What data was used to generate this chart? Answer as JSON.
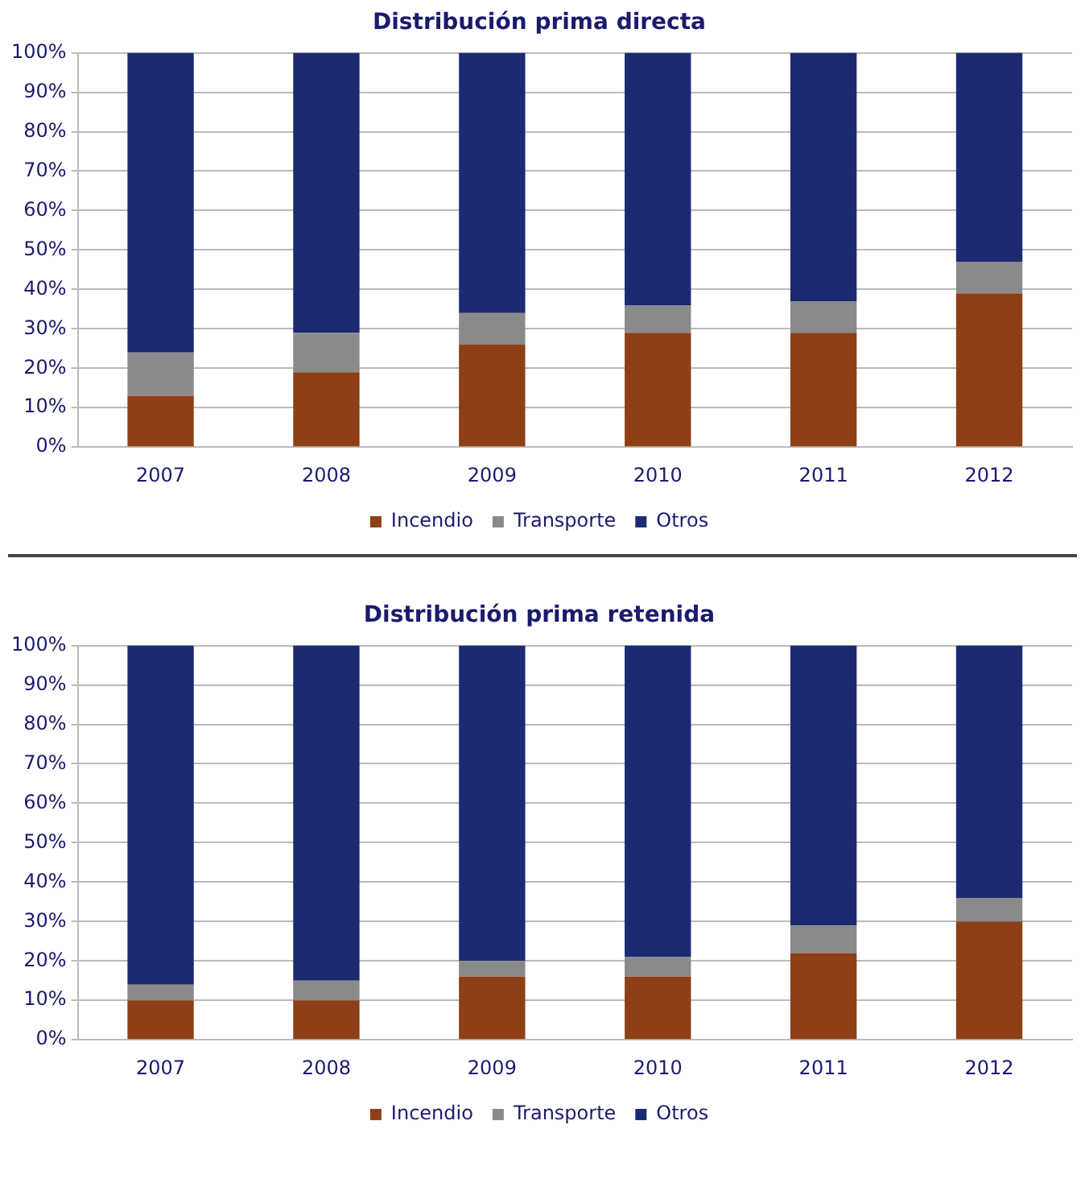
{
  "chart_data": [
    {
      "type": "bar",
      "title": "Distribución prima directa",
      "stacked": true,
      "categories": [
        "2007",
        "2008",
        "2009",
        "2010",
        "2011",
        "2012"
      ],
      "series": [
        {
          "name": "Incendio",
          "color": "#8e3f16",
          "values": [
            13,
            19,
            26,
            29,
            29,
            39
          ]
        },
        {
          "name": "Transporte",
          "color": "#8a8a8a",
          "values": [
            11,
            10,
            8,
            7,
            8,
            8
          ]
        },
        {
          "name": "Otros",
          "color": "#1c2a72",
          "values": [
            76,
            71,
            66,
            64,
            63,
            53
          ]
        }
      ],
      "ylim": [
        0,
        100
      ],
      "yticks": [
        {
          "value": 0,
          "label": "0%"
        },
        {
          "value": 10,
          "label": "10%"
        },
        {
          "value": 20,
          "label": "20%"
        },
        {
          "value": 30,
          "label": "30%"
        },
        {
          "value": 40,
          "label": "40%"
        },
        {
          "value": 50,
          "label": "50%"
        },
        {
          "value": 60,
          "label": "60%"
        },
        {
          "value": 70,
          "label": "70%"
        },
        {
          "value": 80,
          "label": "80%"
        },
        {
          "value": 90,
          "label": "90%"
        },
        {
          "value": 100,
          "label": "100%"
        }
      ],
      "grid": "y",
      "legend": "bottom"
    },
    {
      "type": "bar",
      "title": "Distribución prima retenida",
      "stacked": true,
      "categories": [
        "2007",
        "2008",
        "2009",
        "2010",
        "2011",
        "2012"
      ],
      "series": [
        {
          "name": "Incendio",
          "color": "#8e3f16",
          "values": [
            10,
            10,
            16,
            16,
            22,
            30
          ]
        },
        {
          "name": "Transporte",
          "color": "#8a8a8a",
          "values": [
            4,
            5,
            4,
            5,
            7,
            6
          ]
        },
        {
          "name": "Otros",
          "color": "#1c2a72",
          "values": [
            86,
            85,
            80,
            79,
            71,
            64
          ]
        }
      ],
      "ylim": [
        0,
        100
      ],
      "yticks": [
        {
          "value": 0,
          "label": "0%"
        },
        {
          "value": 10,
          "label": "10%"
        },
        {
          "value": 20,
          "label": "20%"
        },
        {
          "value": 30,
          "label": "30%"
        },
        {
          "value": 40,
          "label": "40%"
        },
        {
          "value": 50,
          "label": "50%"
        },
        {
          "value": 60,
          "label": "60%"
        },
        {
          "value": 70,
          "label": "70%"
        },
        {
          "value": 80,
          "label": "80%"
        },
        {
          "value": 90,
          "label": "90%"
        },
        {
          "value": 100,
          "label": "100%"
        }
      ],
      "grid": "y",
      "legend": "bottom"
    }
  ]
}
